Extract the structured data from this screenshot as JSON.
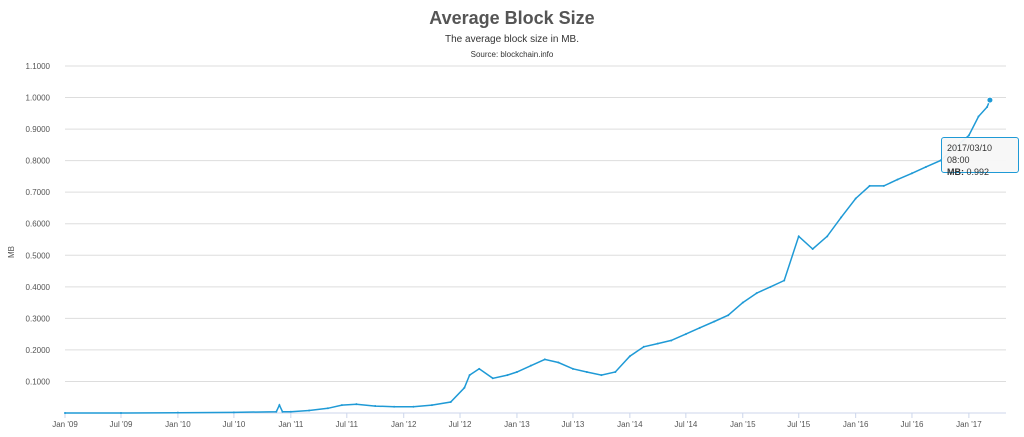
{
  "colors": {
    "series": "#1f9ad6",
    "grid": "#dddddd",
    "axis": "#ccd6eb"
  },
  "chart_data": {
    "type": "line",
    "title": "Average Block Size",
    "subtitle": "The average block size in MB.",
    "source": "Source: blockchain.info",
    "ylabel": "MB",
    "xlabel": "",
    "ylim": [
      0,
      1.1
    ],
    "grid": true,
    "legend": "none",
    "y_ticks": [
      "0.1000",
      "0.2000",
      "0.3000",
      "0.4000",
      "0.5000",
      "0.6000",
      "0.7000",
      "0.8000",
      "0.9000",
      "1.0000",
      "1.1000"
    ],
    "y_tick_values": [
      0.1,
      0.2,
      0.3,
      0.4,
      0.5,
      0.6,
      0.7,
      0.8,
      0.9,
      1.0,
      1.1
    ],
    "x_ticks": [
      "Jan '09",
      "Jul '09",
      "Jan '10",
      "Jul '10",
      "Jan '11",
      "Jul '11",
      "Jan '12",
      "Jul '12",
      "Jan '13",
      "Jul '13",
      "Jan '14",
      "Jul '14",
      "Jan '15",
      "Jul '15",
      "Jan '16",
      "Jul '16",
      "Jan '17"
    ],
    "x_tick_dates": [
      "2009-01-01",
      "2009-07-01",
      "2010-01-01",
      "2010-07-01",
      "2011-01-01",
      "2011-07-01",
      "2012-01-01",
      "2012-07-01",
      "2013-01-01",
      "2013-07-01",
      "2014-01-01",
      "2014-07-01",
      "2015-01-01",
      "2015-07-01",
      "2016-01-01",
      "2016-07-01",
      "2017-01-01"
    ],
    "series": [
      {
        "values": [
          {
            "x": "2009-01-01",
            "y": 0.0
          },
          {
            "x": "2009-07-01",
            "y": 0.0
          },
          {
            "x": "2010-01-01",
            "y": 0.001
          },
          {
            "x": "2010-07-01",
            "y": 0.002
          },
          {
            "x": "2010-11-15",
            "y": 0.004
          },
          {
            "x": "2010-11-25",
            "y": 0.025
          },
          {
            "x": "2010-12-05",
            "y": 0.004
          },
          {
            "x": "2011-01-01",
            "y": 0.004
          },
          {
            "x": "2011-03-01",
            "y": 0.008
          },
          {
            "x": "2011-05-01",
            "y": 0.015
          },
          {
            "x": "2011-06-15",
            "y": 0.025
          },
          {
            "x": "2011-08-01",
            "y": 0.028
          },
          {
            "x": "2011-10-01",
            "y": 0.022
          },
          {
            "x": "2011-12-01",
            "y": 0.02
          },
          {
            "x": "2012-02-01",
            "y": 0.02
          },
          {
            "x": "2012-04-01",
            "y": 0.025
          },
          {
            "x": "2012-06-01",
            "y": 0.035
          },
          {
            "x": "2012-07-15",
            "y": 0.08
          },
          {
            "x": "2012-08-01",
            "y": 0.12
          },
          {
            "x": "2012-09-01",
            "y": 0.14
          },
          {
            "x": "2012-10-15",
            "y": 0.11
          },
          {
            "x": "2012-12-01",
            "y": 0.12
          },
          {
            "x": "2013-01-01",
            "y": 0.13
          },
          {
            "x": "2013-02-15",
            "y": 0.15
          },
          {
            "x": "2013-04-01",
            "y": 0.17
          },
          {
            "x": "2013-05-15",
            "y": 0.16
          },
          {
            "x": "2013-07-01",
            "y": 0.14
          },
          {
            "x": "2013-08-15",
            "y": 0.13
          },
          {
            "x": "2013-10-01",
            "y": 0.12
          },
          {
            "x": "2013-11-15",
            "y": 0.13
          },
          {
            "x": "2014-01-01",
            "y": 0.18
          },
          {
            "x": "2014-02-15",
            "y": 0.21
          },
          {
            "x": "2014-04-01",
            "y": 0.22
          },
          {
            "x": "2014-05-15",
            "y": 0.23
          },
          {
            "x": "2014-07-01",
            "y": 0.25
          },
          {
            "x": "2014-08-15",
            "y": 0.27
          },
          {
            "x": "2014-10-01",
            "y": 0.29
          },
          {
            "x": "2014-11-15",
            "y": 0.31
          },
          {
            "x": "2015-01-01",
            "y": 0.35
          },
          {
            "x": "2015-02-15",
            "y": 0.38
          },
          {
            "x": "2015-04-01",
            "y": 0.4
          },
          {
            "x": "2015-05-15",
            "y": 0.42
          },
          {
            "x": "2015-07-01",
            "y": 0.56
          },
          {
            "x": "2015-08-15",
            "y": 0.52
          },
          {
            "x": "2015-10-01",
            "y": 0.56
          },
          {
            "x": "2015-11-15",
            "y": 0.62
          },
          {
            "x": "2016-01-01",
            "y": 0.68
          },
          {
            "x": "2016-02-15",
            "y": 0.72
          },
          {
            "x": "2016-04-01",
            "y": 0.72
          },
          {
            "x": "2016-05-15",
            "y": 0.74
          },
          {
            "x": "2016-07-01",
            "y": 0.76
          },
          {
            "x": "2016-08-15",
            "y": 0.78
          },
          {
            "x": "2016-10-01",
            "y": 0.8
          },
          {
            "x": "2016-11-15",
            "y": 0.84
          },
          {
            "x": "2017-01-01",
            "y": 0.88
          },
          {
            "x": "2017-02-01",
            "y": 0.94
          },
          {
            "x": "2017-03-01",
            "y": 0.97
          },
          {
            "x": "2017-03-10",
            "y": 0.992
          }
        ]
      }
    ],
    "tooltip": {
      "date": "2017/03/10 08:00",
      "series_label": "MB",
      "value": "0.992"
    }
  }
}
